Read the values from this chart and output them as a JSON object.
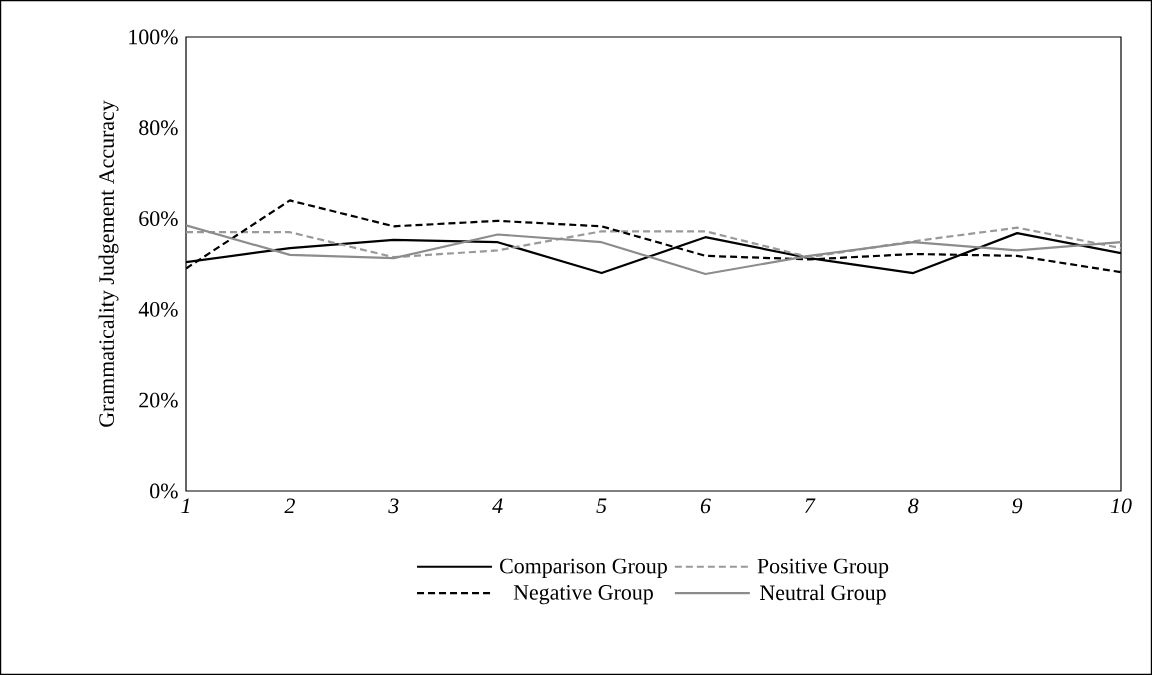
{
  "chart_data": {
    "type": "line",
    "ylabel": "Grammaticality Judgement Accuracy",
    "categories": [
      "1",
      "2",
      "3",
      "4",
      "5",
      "6",
      "7",
      "8",
      "9",
      "10"
    ],
    "series": [
      {
        "name": "Comparison Group",
        "color": "#000000",
        "line_style": "solid",
        "values": [
          50.4,
          53.5,
          55.3,
          54.8,
          48.0,
          55.9,
          51.3,
          48.0,
          56.8,
          52.4
        ]
      },
      {
        "name": "Positive Group",
        "color": "#999999",
        "line_style": "dashed",
        "values": [
          57.0,
          57.0,
          51.5,
          53.0,
          57.2,
          57.2,
          51.5,
          55.0,
          58.0,
          53.5
        ]
      },
      {
        "name": "Negative Group",
        "color": "#000000",
        "line_style": "dashed",
        "values": [
          49.0,
          64.0,
          58.3,
          59.5,
          58.3,
          51.8,
          51.0,
          52.2,
          51.8,
          48.2
        ]
      },
      {
        "name": "Neutral Group",
        "color": "#8c8c8c",
        "line_style": "solid",
        "values": [
          58.5,
          52.0,
          51.3,
          56.5,
          54.8,
          47.8,
          51.8,
          54.8,
          53.0,
          54.8
        ]
      }
    ],
    "ylim": [
      0,
      100
    ],
    "yticks": [
      {
        "value": 0,
        "label": "0%"
      },
      {
        "value": 20,
        "label": "20%"
      },
      {
        "value": 40,
        "label": "40%"
      },
      {
        "value": 60,
        "label": "60%"
      },
      {
        "value": 80,
        "label": "80%"
      },
      {
        "value": 100,
        "label": "100%"
      }
    ],
    "grid": false,
    "legend": "bottom",
    "marker": "none"
  }
}
